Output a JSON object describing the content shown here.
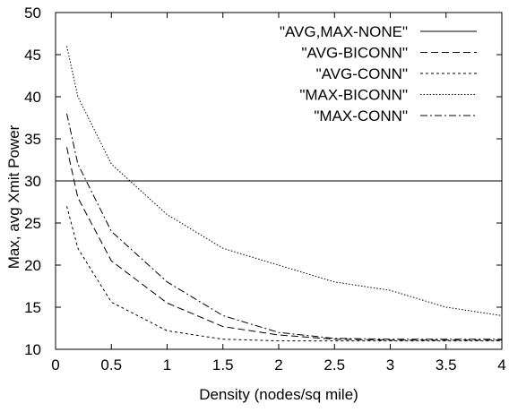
{
  "chart_data": {
    "type": "line",
    "title": "",
    "xlabel": "Density (nodes/sq mile)",
    "ylabel": "Max, avg Xmit Power",
    "xlim": [
      0,
      4
    ],
    "ylim": [
      10,
      50
    ],
    "x_ticks": [
      0,
      0.5,
      1,
      1.5,
      2,
      2.5,
      3,
      3.5,
      4
    ],
    "x_tick_labels": [
      "0",
      "0.5",
      "1",
      "1.5",
      "2",
      "2.5",
      "3",
      "3.5",
      "4"
    ],
    "y_ticks": [
      10,
      15,
      20,
      25,
      30,
      35,
      40,
      45,
      50
    ],
    "y_tick_labels": [
      "10",
      "15",
      "20",
      "25",
      "30",
      "35",
      "40",
      "45",
      "50"
    ],
    "grid": false,
    "legend_position": "top-right",
    "series": [
      {
        "name": "\"AVG,MAX-NONE\"",
        "dash": "solid",
        "points": [
          [
            0,
            30
          ],
          [
            4,
            30
          ]
        ]
      },
      {
        "name": "\"AVG-BICONN\"",
        "dash": "dashed",
        "points": [
          [
            0.1,
            34
          ],
          [
            0.2,
            28
          ],
          [
            0.5,
            20.5
          ],
          [
            1,
            15.5
          ],
          [
            1.5,
            12.7
          ],
          [
            2,
            11.7
          ],
          [
            2.5,
            11.2
          ],
          [
            3,
            11.1
          ],
          [
            3.5,
            11.1
          ],
          [
            4,
            11.1
          ]
        ]
      },
      {
        "name": "\"AVG-CONN\"",
        "dash": "short-dashed",
        "points": [
          [
            0.1,
            27
          ],
          [
            0.2,
            22
          ],
          [
            0.5,
            15.6
          ],
          [
            1,
            12.2
          ],
          [
            1.5,
            11.2
          ],
          [
            2,
            11
          ],
          [
            2.5,
            11
          ],
          [
            3,
            11
          ],
          [
            3.5,
            11
          ],
          [
            4,
            11
          ]
        ]
      },
      {
        "name": "\"MAX-BICONN\"",
        "dash": "dotted",
        "points": [
          [
            0.1,
            46
          ],
          [
            0.2,
            40
          ],
          [
            0.5,
            32
          ],
          [
            1,
            26
          ],
          [
            1.5,
            22
          ],
          [
            2,
            20
          ],
          [
            2.5,
            18
          ],
          [
            3,
            17
          ],
          [
            3.5,
            15
          ],
          [
            4,
            14
          ]
        ]
      },
      {
        "name": "\"MAX-CONN\"",
        "dash": "dash-dot",
        "points": [
          [
            0.1,
            38
          ],
          [
            0.2,
            32
          ],
          [
            0.5,
            24
          ],
          [
            1,
            18
          ],
          [
            1.5,
            14
          ],
          [
            2,
            12
          ],
          [
            2.5,
            11.3
          ],
          [
            3,
            11.2
          ],
          [
            3.5,
            11.2
          ],
          [
            4,
            11.2
          ]
        ]
      }
    ]
  }
}
